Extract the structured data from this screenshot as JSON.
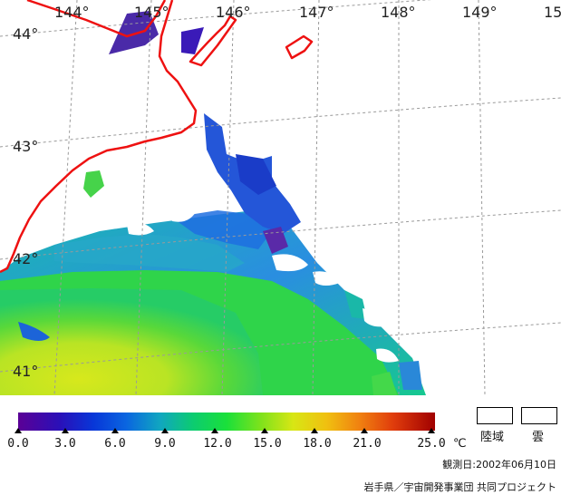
{
  "map": {
    "lon_labels": [
      "144°",
      "145°",
      "146°",
      "147°",
      "148°",
      "149°",
      "15"
    ],
    "lat_labels": [
      "44°",
      "43°",
      "42°",
      "41°"
    ],
    "land_outline_color": "#ee1111",
    "grid_color": "#9a9a9a"
  },
  "legend": {
    "ticks": [
      "0.0",
      "3.0",
      "6.0",
      "9.0",
      "12.0",
      "15.0",
      "18.0",
      "21.0",
      "25.0"
    ],
    "unit": "℃",
    "land_label": "陸域",
    "cloud_label": "雲",
    "scale_colors": [
      "#5b0096",
      "#0836d8",
      "#10a6c0",
      "#1ae03a",
      "#d8e614",
      "#f08010",
      "#a00000"
    ]
  },
  "observation_date": "観測日:2002年06月10日",
  "credit": "岩手県／宇宙開発事業団 共同プロジェクト"
}
